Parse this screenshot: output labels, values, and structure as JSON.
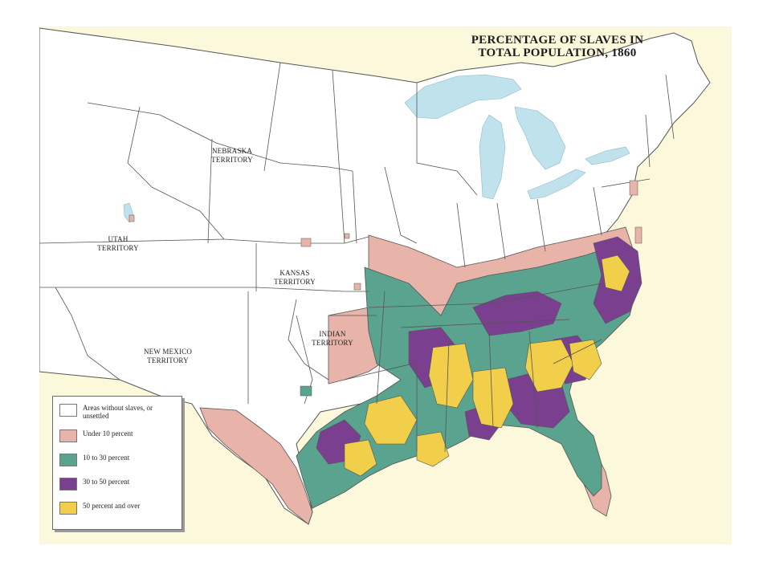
{
  "title": {
    "line1": "PERCENTAGE OF SLAVES IN",
    "line2": "TOTAL POPULATION, 1860"
  },
  "territories": {
    "nebraska": {
      "line1": "NEBRASKA",
      "line2": "TERRITORY"
    },
    "utah": {
      "line1": "UTAH",
      "line2": "TERRITORY"
    },
    "kansas": {
      "line1": "KANSAS",
      "line2": "TERRITORY"
    },
    "indian": {
      "line1": "INDIAN",
      "line2": "TERRITORY"
    },
    "new_mexico": {
      "line1": "NEW MEXICO",
      "line2": "TERRITORY"
    }
  },
  "legend": {
    "items": [
      {
        "label": "Areas without slaves, or unsettled",
        "color": "#ffffff"
      },
      {
        "label": "Under 10 percent",
        "color": "#e8b3a8"
      },
      {
        "label": "10 to 30 percent",
        "color": "#5aa38e"
      },
      {
        "label": "30 to 50 percent",
        "color": "#7a3f8f"
      },
      {
        "label": "50 percent and over",
        "color": "#f2cf4a"
      }
    ]
  },
  "colors": {
    "background": "#fbf8dc",
    "land": "#ffffff",
    "water": "#bfe2ec",
    "border": "#555555"
  }
}
